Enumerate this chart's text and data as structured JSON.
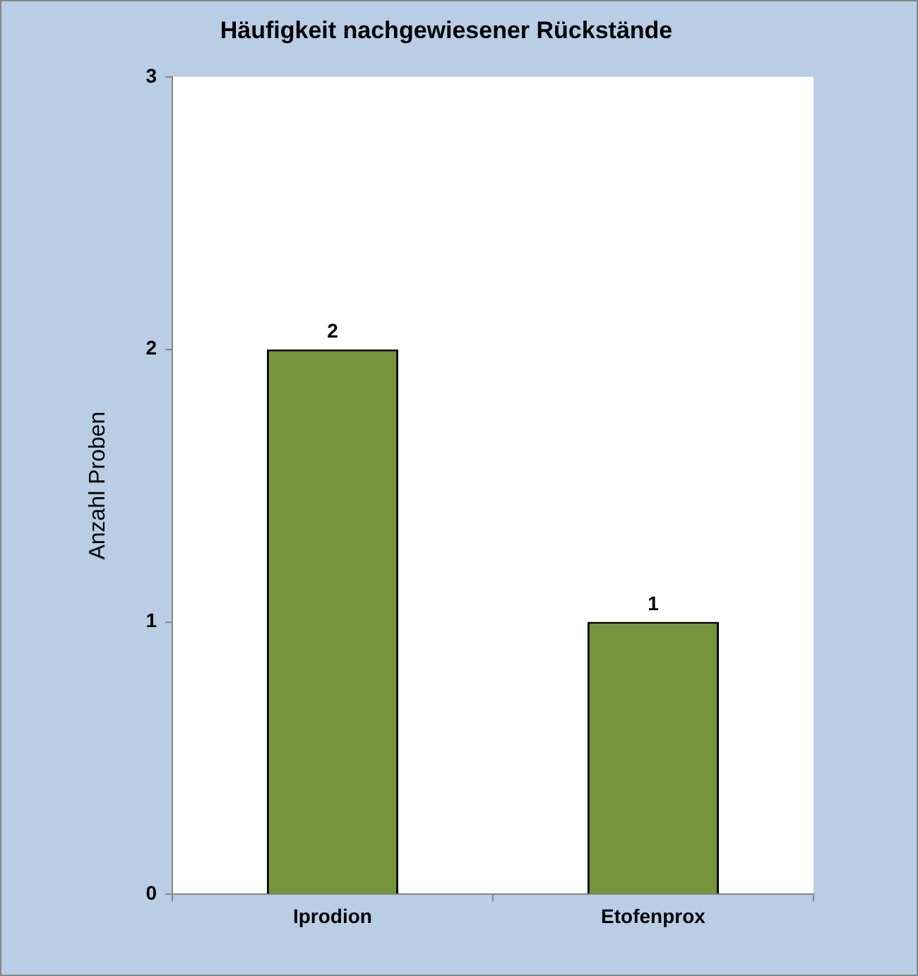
{
  "chart_data": {
    "type": "bar",
    "title": "Häufigkeit nachgewiesener Rückstände",
    "ylabel": "Anzahl Proben",
    "categories": [
      "Iprodion",
      "Etofenprox"
    ],
    "values": [
      2,
      1
    ],
    "color": "#77933c",
    "ylim": [
      0,
      3
    ],
    "yticks": [
      0,
      1,
      2,
      3
    ],
    "grid": false,
    "legend": false,
    "data_labels": true
  }
}
